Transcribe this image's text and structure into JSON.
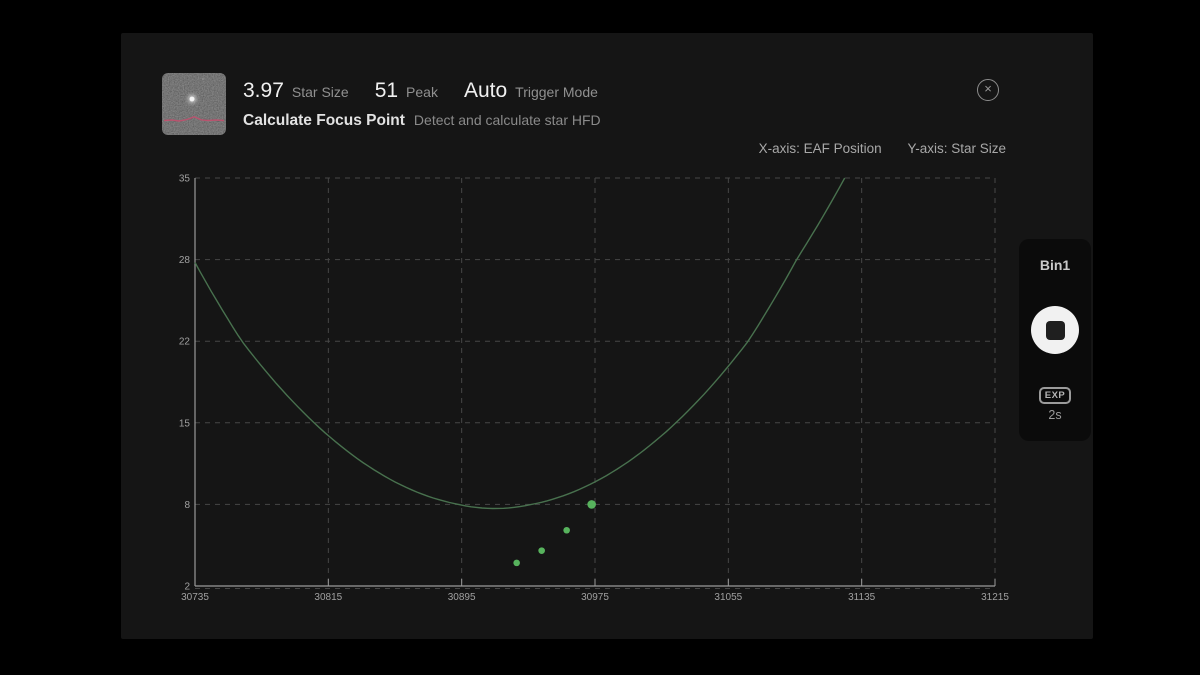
{
  "window": {
    "close_glyph": "×"
  },
  "header": {
    "star_size_value": "3.97",
    "star_size_label": "Star Size",
    "peak_value": "51",
    "peak_label": "Peak",
    "trigger_mode_value": "Auto",
    "trigger_mode_label": "Trigger Mode",
    "title": "Calculate Focus Point",
    "subtitle": "Detect and calculate star HFD"
  },
  "axis_note": {
    "x_label": "X-axis: EAF Position",
    "y_label": "Y-axis: Star Size"
  },
  "chart_data": {
    "type": "scatter",
    "xlabel": "EAF Position",
    "ylabel": "Star Size",
    "xlim": [
      30735,
      31215
    ],
    "ylim": [
      2,
      35
    ],
    "grid": true,
    "x_ticks": [
      30735,
      30815,
      30895,
      30975,
      31055,
      31135,
      31215
    ],
    "y_ticks": [
      2,
      8,
      15,
      22,
      28,
      35
    ],
    "points": [
      [
        30928,
        3.7
      ],
      [
        30943,
        4.6
      ],
      [
        30958,
        6.1
      ],
      [
        30973,
        8.0
      ]
    ],
    "curve": {
      "type": "parabola",
      "vertex_x": 30915,
      "vertex_y": 7.7,
      "a": 0.00062,
      "x_min": 30735,
      "y_max": 35
    },
    "point_radius": 3.3,
    "last_point_radius": 4.3,
    "colors": {
      "curve": "#48714e",
      "points": "#57b35d",
      "grid": "#464646",
      "axis": "#9a9a9a",
      "tick_text": "#a0a0a0"
    }
  },
  "side_panel": {
    "bin_label": "Bin1",
    "exp_label": "EXP",
    "exp_value": "2s"
  }
}
